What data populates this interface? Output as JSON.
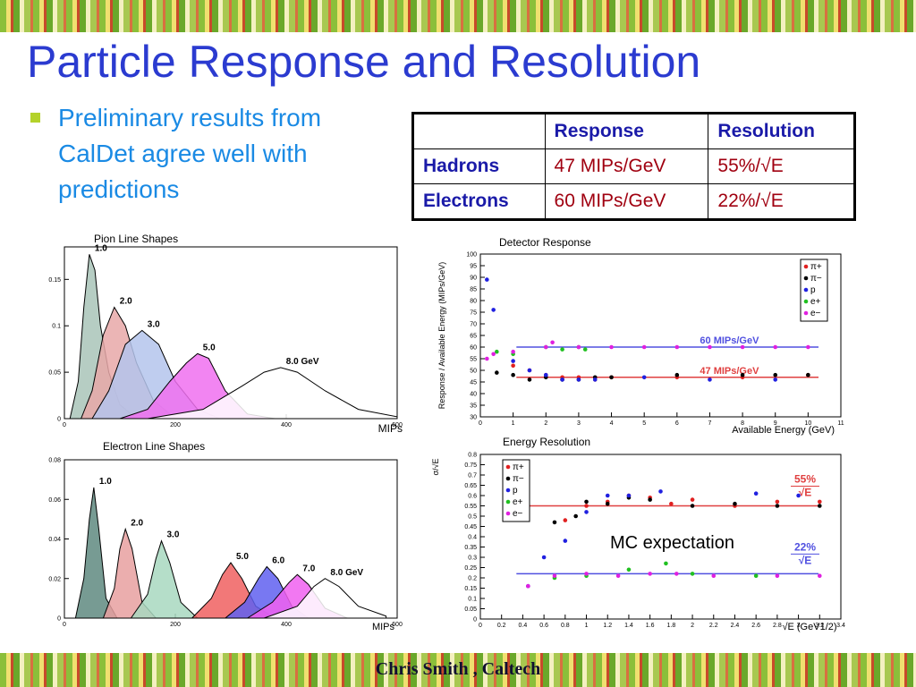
{
  "title": "Particle Response and Resolution",
  "bullet": "Preliminary results from CalDet agree well with predictions",
  "table": {
    "columns": [
      "Response",
      "Resolution"
    ],
    "rows": [
      {
        "label": "Hadrons",
        "cells": [
          "47 MIPs/GeV",
          "55%/√E"
        ]
      },
      {
        "label": "Electrons",
        "cells": [
          "60 MIPs/GeV",
          "22%/√E"
        ]
      }
    ]
  },
  "charts": [
    {
      "type": "line_shapes",
      "title": "Pion Line Shapes",
      "xlabel": "MIPs",
      "xlim": [
        0,
        600
      ],
      "xticks": [
        0,
        200,
        400,
        600
      ],
      "ylim": [
        0,
        0.185
      ],
      "yticks": [
        0,
        0.05,
        0.1,
        0.15
      ],
      "series": [
        {
          "name": "1.0",
          "color": "#a9c4b8",
          "x": [
            10,
            25,
            35,
            45,
            55,
            65,
            80,
            100,
            130
          ],
          "values": [
            0,
            0.04,
            0.12,
            0.177,
            0.16,
            0.1,
            0.05,
            0.015,
            0
          ]
        },
        {
          "name": "2.0",
          "color": "#e8a8a8",
          "x": [
            30,
            50,
            70,
            90,
            110,
            130,
            160,
            200
          ],
          "values": [
            0,
            0.03,
            0.09,
            0.12,
            0.1,
            0.06,
            0.02,
            0
          ]
        },
        {
          "name": "3.0",
          "color": "#b4c4ec",
          "x": [
            50,
            80,
            110,
            140,
            170,
            200,
            240,
            280
          ],
          "values": [
            0,
            0.03,
            0.08,
            0.095,
            0.08,
            0.04,
            0.01,
            0
          ]
        },
        {
          "name": "5.0",
          "color": "#f070f0",
          "x": [
            100,
            150,
            190,
            220,
            240,
            260,
            290,
            330,
            380
          ],
          "values": [
            0,
            0.01,
            0.04,
            0.06,
            0.07,
            0.065,
            0.03,
            0.005,
            0
          ]
        },
        {
          "name": "8.0 GeV",
          "color": "#ffffff",
          "x": [
            150,
            250,
            320,
            360,
            390,
            420,
            470,
            530,
            600
          ],
          "values": [
            0,
            0.01,
            0.035,
            0.05,
            0.055,
            0.05,
            0.03,
            0.01,
            0.002
          ]
        }
      ]
    },
    {
      "type": "line_shapes",
      "title": "Electron Line Shapes",
      "xlabel": "MIPs",
      "xlim": [
        0,
        600
      ],
      "xticks": [
        0,
        200,
        400,
        600
      ],
      "ylim": [
        0,
        0.08
      ],
      "yticks": [
        0,
        0.02,
        0.04,
        0.06,
        0.08
      ],
      "series": [
        {
          "name": "1.0",
          "color": "#5f8a80",
          "x": [
            20,
            35,
            45,
            53,
            62,
            75,
            95
          ],
          "values": [
            0,
            0.02,
            0.05,
            0.066,
            0.045,
            0.01,
            0
          ]
        },
        {
          "name": "2.0",
          "color": "#e8a0a0",
          "x": [
            70,
            90,
            100,
            110,
            122,
            140,
            165
          ],
          "values": [
            0,
            0.015,
            0.035,
            0.045,
            0.035,
            0.008,
            0
          ]
        },
        {
          "name": "3.0",
          "color": "#a8d8c0",
          "x": [
            120,
            150,
            165,
            175,
            190,
            210,
            240
          ],
          "values": [
            0,
            0.012,
            0.03,
            0.039,
            0.028,
            0.008,
            0
          ]
        },
        {
          "name": "5.0",
          "color": "#f06060",
          "x": [
            230,
            265,
            285,
            300,
            320,
            345,
            380
          ],
          "values": [
            0,
            0.01,
            0.022,
            0.028,
            0.02,
            0.006,
            0
          ]
        },
        {
          "name": "6.0",
          "color": "#6060f0",
          "x": [
            290,
            325,
            350,
            365,
            385,
            410,
            440
          ],
          "values": [
            0,
            0.008,
            0.02,
            0.026,
            0.02,
            0.006,
            0
          ]
        },
        {
          "name": "7.0",
          "color": "#f060f0",
          "x": [
            330,
            375,
            405,
            420,
            440,
            470,
            510
          ],
          "values": [
            0,
            0.008,
            0.018,
            0.022,
            0.017,
            0.005,
            0
          ]
        },
        {
          "name": "8.0 GeV",
          "color": "#ffffff",
          "x": [
            360,
            420,
            450,
            470,
            495,
            530,
            580
          ],
          "values": [
            0,
            0.006,
            0.016,
            0.02,
            0.016,
            0.006,
            0.001
          ]
        }
      ]
    },
    {
      "type": "scatter",
      "title": "Detector Response",
      "xlabel": "Available Energy (GeV)",
      "ylabel": "Response / Available Energy (MIPs/GeV)",
      "xlim": [
        0,
        11
      ],
      "xticks": [
        0,
        1,
        2,
        3,
        4,
        5,
        6,
        7,
        8,
        9,
        10,
        11
      ],
      "ylim": [
        30,
        100
      ],
      "yticks": [
        30,
        35,
        40,
        45,
        50,
        55,
        60,
        65,
        70,
        75,
        80,
        85,
        90,
        95,
        100
      ],
      "ref_lines": [
        {
          "value": 60,
          "label": "60 MIPs/GeV",
          "color": "#5050e0"
        },
        {
          "value": 47,
          "label": "47 MIPs/GeV",
          "color": "#e04040"
        }
      ],
      "series": [
        {
          "name": "π+",
          "color": "#e02020",
          "x": [
            1,
            1.5,
            2,
            2.5,
            3,
            3.5,
            4,
            6,
            8,
            10
          ],
          "values": [
            52,
            50,
            48,
            47,
            47,
            46,
            47,
            47,
            47,
            48
          ]
        },
        {
          "name": "π−",
          "color": "#000000",
          "x": [
            0.5,
            1,
            1.5,
            2,
            2.5,
            3,
            3.5,
            4,
            6,
            8,
            9,
            10
          ],
          "values": [
            49,
            48,
            46,
            47,
            46,
            46,
            47,
            47,
            48,
            48,
            48,
            48
          ]
        },
        {
          "name": "p",
          "color": "#2020e0",
          "x": [
            0.2,
            0.4,
            1,
            1.5,
            2,
            2.5,
            3,
            3.5,
            5,
            7,
            9
          ],
          "values": [
            89,
            76,
            54,
            50,
            48,
            46,
            46,
            46,
            47,
            46,
            46
          ]
        },
        {
          "name": "e+",
          "color": "#20c020",
          "x": [
            0.5,
            1,
            2,
            2.5,
            3,
            3.2
          ],
          "values": [
            58,
            57,
            60,
            59,
            60,
            59
          ]
        },
        {
          "name": "e−",
          "color": "#e020e0",
          "x": [
            0.2,
            0.4,
            1,
            2,
            2.2,
            3,
            4,
            5,
            6,
            7,
            8,
            9,
            10
          ],
          "values": [
            55,
            57,
            58,
            60,
            62,
            60,
            60,
            60,
            60,
            60,
            60,
            60,
            60
          ]
        }
      ]
    },
    {
      "type": "scatter",
      "title": "Energy Resolution",
      "xlabel": "√E (GeV1/2)",
      "ylabel": "σ/√E",
      "annotation": "MC expectation",
      "xlim": [
        0,
        3.4
      ],
      "xticks": [
        0,
        0.2,
        0.4,
        0.6,
        0.8,
        1,
        1.2,
        1.4,
        1.6,
        1.8,
        2,
        2.2,
        2.4,
        2.6,
        2.8,
        3,
        3.2,
        3.4
      ],
      "ylim": [
        0,
        0.8
      ],
      "yticks": [
        0,
        0.05,
        0.1,
        0.15,
        0.2,
        0.25,
        0.3,
        0.35,
        0.4,
        0.45,
        0.5,
        0.55,
        0.6,
        0.65,
        0.7,
        0.75,
        0.8
      ],
      "ref_lines": [
        {
          "value": 0.55,
          "label": "55%",
          "under": "√E",
          "color": "#e04040"
        },
        {
          "value": 0.22,
          "label": "22%",
          "under": "√E",
          "color": "#5050e0"
        }
      ],
      "series": [
        {
          "name": "π+",
          "color": "#e02020",
          "x": [
            0.8,
            1,
            1.2,
            1.4,
            1.6,
            1.8,
            2,
            2.4,
            2.8,
            3.2
          ],
          "values": [
            0.48,
            0.55,
            0.57,
            0.6,
            0.59,
            0.56,
            0.58,
            0.55,
            0.57,
            0.57
          ]
        },
        {
          "name": "π−",
          "color": "#000000",
          "x": [
            0.7,
            0.9,
            1,
            1.2,
            1.4,
            1.6,
            2,
            2.4,
            2.8,
            3.2
          ],
          "values": [
            0.47,
            0.5,
            0.57,
            0.56,
            0.59,
            0.58,
            0.55,
            0.56,
            0.55,
            0.55
          ]
        },
        {
          "name": "p",
          "color": "#2020e0",
          "x": [
            0.45,
            0.6,
            0.8,
            1,
            1.2,
            1.4,
            1.7,
            2.6,
            3
          ],
          "values": [
            0.16,
            0.3,
            0.38,
            0.52,
            0.6,
            0.6,
            0.62,
            0.61,
            0.6
          ]
        },
        {
          "name": "e+",
          "color": "#20c020",
          "x": [
            0.7,
            1,
            1.4,
            1.75,
            2,
            2.6
          ],
          "values": [
            0.2,
            0.21,
            0.24,
            0.27,
            0.22,
            0.21
          ]
        },
        {
          "name": "e−",
          "color": "#e020e0",
          "x": [
            0.45,
            0.7,
            1,
            1.3,
            1.6,
            1.85,
            2.2,
            2.8,
            3.2
          ],
          "values": [
            0.16,
            0.21,
            0.22,
            0.21,
            0.22,
            0.22,
            0.21,
            0.21,
            0.21
          ]
        }
      ]
    }
  ],
  "footer": "Chris Smith , Caltech"
}
